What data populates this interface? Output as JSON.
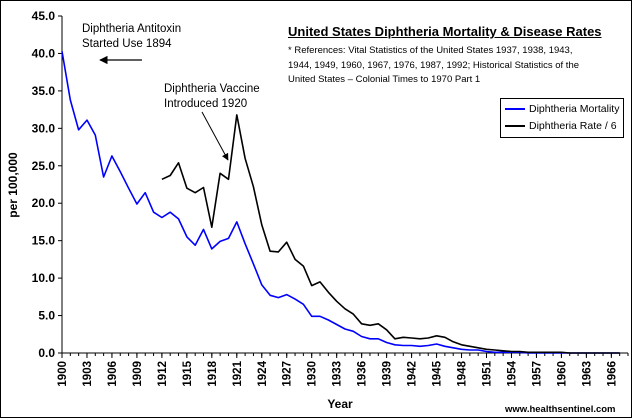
{
  "chart_data": {
    "type": "line",
    "title": "United States Diphtheria Mortality & Disease Rates",
    "references": "* References: Vital Statistics of the United States 1937, 1938, 1943, 1944, 1949, 1960, 1967, 1976, 1987, 1992; Historical Statistics of the United States – Colonial Times to 1970 Part 1",
    "xlabel": "Year",
    "ylabel": "per 100,000",
    "ylim": [
      0,
      45
    ],
    "xlim": [
      1900,
      1968
    ],
    "yticks": [
      "0.0",
      "5.0",
      "10.0",
      "15.0",
      "20.0",
      "25.0",
      "30.0",
      "35.0",
      "40.0",
      "45.0"
    ],
    "xticks": [
      "1900",
      "1903",
      "1906",
      "1909",
      "1912",
      "1915",
      "1918",
      "1921",
      "1924",
      "1927",
      "1930",
      "1933",
      "1936",
      "1939",
      "1942",
      "1945",
      "1948",
      "1951",
      "1954",
      "1957",
      "1960",
      "1963",
      "1966"
    ],
    "legend": {
      "position": "right",
      "entries": [
        "Diphtheria Mortality",
        "Diphtheria Rate / 6"
      ]
    },
    "colors": {
      "mortality": "#0000ff",
      "rate": "#000000"
    },
    "annotations": {
      "antitoxin": "Diphtheria Antitoxin\nStarted Use 1894",
      "vaccine": "Diphtheria Vaccine\nIntroduced 1920"
    },
    "watermark": "www.healthsentinel.com",
    "series": [
      {
        "name": "Diphtheria Mortality",
        "x": [
          1900,
          1901,
          1902,
          1903,
          1904,
          1905,
          1906,
          1907,
          1908,
          1909,
          1910,
          1911,
          1912,
          1913,
          1914,
          1915,
          1916,
          1917,
          1918,
          1919,
          1920,
          1921,
          1922,
          1923,
          1924,
          1925,
          1926,
          1927,
          1928,
          1929,
          1930,
          1931,
          1932,
          1933,
          1934,
          1935,
          1936,
          1937,
          1938,
          1939,
          1940,
          1941,
          1942,
          1943,
          1944,
          1945,
          1946,
          1947,
          1948,
          1949,
          1950,
          1951,
          1952,
          1953,
          1954,
          1955,
          1956,
          1957,
          1958,
          1959,
          1960,
          1961,
          1962,
          1963,
          1964,
          1965,
          1966,
          1967
        ],
        "values": [
          40.3,
          33.8,
          29.8,
          31.1,
          29.1,
          23.5,
          26.3,
          24.2,
          22.0,
          19.9,
          21.4,
          18.8,
          18.1,
          18.8,
          17.9,
          15.5,
          14.4,
          16.5,
          13.9,
          14.9,
          15.3,
          17.5,
          14.6,
          11.9,
          9.1,
          7.7,
          7.4,
          7.8,
          7.2,
          6.5,
          4.9,
          4.9,
          4.4,
          3.8,
          3.2,
          2.9,
          2.2,
          1.9,
          1.9,
          1.4,
          1.1,
          1.0,
          1.0,
          0.9,
          1.0,
          1.2,
          0.9,
          0.7,
          0.5,
          0.4,
          0.4,
          0.2,
          0.1,
          0.1,
          0.1,
          0.1,
          0.0,
          0.0,
          0.0,
          0.0,
          0.0,
          0.0,
          0.0,
          0.0,
          0.0,
          0.0,
          0.0,
          0.0
        ]
      },
      {
        "name": "Diphtheria Rate / 6",
        "x": [
          1912,
          1913,
          1914,
          1915,
          1916,
          1917,
          1918,
          1919,
          1920,
          1921,
          1922,
          1923,
          1924,
          1925,
          1926,
          1927,
          1928,
          1929,
          1930,
          1931,
          1932,
          1933,
          1934,
          1935,
          1936,
          1937,
          1938,
          1939,
          1940,
          1941,
          1942,
          1943,
          1944,
          1945,
          1946,
          1947,
          1948,
          1949,
          1950,
          1951,
          1952,
          1953,
          1954,
          1955,
          1956,
          1957,
          1958,
          1959,
          1960,
          1961,
          1962,
          1963,
          1964,
          1965,
          1966,
          1967
        ],
        "values": [
          23.2,
          23.7,
          25.4,
          22.0,
          21.4,
          22.1,
          16.8,
          24.0,
          23.2,
          31.8,
          26.0,
          22.2,
          17.1,
          13.6,
          13.5,
          14.8,
          12.5,
          11.6,
          9.0,
          9.5,
          8.1,
          6.9,
          5.9,
          5.2,
          3.9,
          3.7,
          3.9,
          3.1,
          1.9,
          2.1,
          2.0,
          1.9,
          2.0,
          2.3,
          2.1,
          1.5,
          1.1,
          0.9,
          0.7,
          0.5,
          0.4,
          0.3,
          0.2,
          0.2,
          0.1,
          0.1,
          0.1,
          0.1,
          0.1,
          0.0,
          0.0,
          0.0,
          0.0,
          0.0,
          0.0,
          0.0
        ]
      }
    ]
  }
}
